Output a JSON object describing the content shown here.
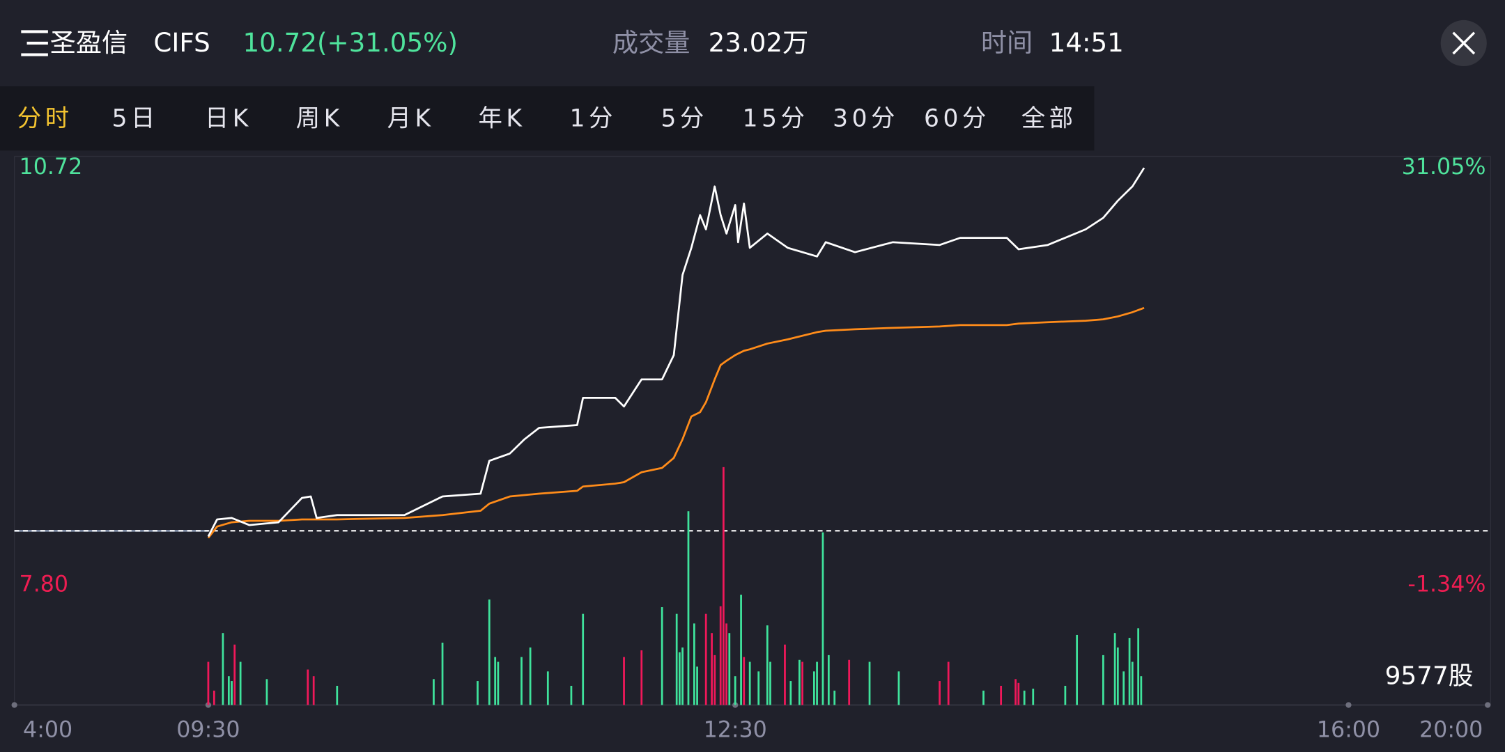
{
  "header": {
    "name": "圣盈信",
    "code": "CIFS",
    "quote": "10.72(+31.05%)",
    "volume_label": "成交量",
    "volume": "23.02万",
    "time_label": "时间",
    "time": "14:51"
  },
  "tabs": {
    "items": [
      "分时",
      "5日",
      "日K",
      "周K",
      "月K",
      "年K",
      "1分",
      "5分",
      "15分",
      "30分",
      "60分",
      "全部"
    ],
    "active": 0
  },
  "chart_data": [
    {
      "type": "line",
      "x": [
        "09:30",
        "09:33",
        "09:38",
        "09:44",
        "09:54",
        "10:02",
        "10:05",
        "10:07",
        "10:14",
        "10:37",
        "10:50",
        "11:03",
        "11:06",
        "11:13",
        "11:18",
        "11:23",
        "11:36",
        "11:38",
        "11:49",
        "11:52",
        "11:58",
        "12:05",
        "12:09",
        "12:12",
        "12:15",
        "12:18",
        "12:20",
        "12:23",
        "12:25",
        "12:27",
        "12:30",
        "12:31",
        "12:33",
        "12:35",
        "12:41",
        "12:48",
        "12:58",
        "13:01",
        "13:11",
        "13:24",
        "13:40",
        "13:47",
        "14:03",
        "14:07",
        "14:17",
        "14:30",
        "14:36",
        "14:41",
        "14:46",
        "14:50"
      ],
      "series": [
        {
          "color": "#ffffff",
          "values": [
            8.14,
            8.26,
            8.27,
            8.22,
            8.24,
            8.41,
            8.42,
            8.27,
            8.29,
            8.29,
            8.42,
            8.44,
            8.67,
            8.72,
            8.82,
            8.9,
            8.92,
            9.11,
            9.11,
            9.05,
            9.24,
            9.24,
            9.41,
            9.97,
            10.16,
            10.39,
            10.29,
            10.59,
            10.39,
            10.26,
            10.46,
            10.2,
            10.47,
            10.16,
            10.26,
            10.16,
            10.1,
            10.2,
            10.13,
            10.2,
            10.18,
            10.23,
            10.23,
            10.15,
            10.18,
            10.29,
            10.37,
            10.49,
            10.59,
            10.72
          ]
        },
        {
          "color": "#ff8c1a",
          "values": [
            8.13,
            8.21,
            8.24,
            8.25,
            8.25,
            8.26,
            8.26,
            8.26,
            8.26,
            8.27,
            8.29,
            8.32,
            8.37,
            8.42,
            8.43,
            8.44,
            8.46,
            8.49,
            8.51,
            8.52,
            8.59,
            8.62,
            8.69,
            8.82,
            8.98,
            9.01,
            9.08,
            9.24,
            9.34,
            9.37,
            9.41,
            9.42,
            9.44,
            9.45,
            9.49,
            9.52,
            9.57,
            9.58,
            9.59,
            9.6,
            9.61,
            9.62,
            9.62,
            9.63,
            9.64,
            9.65,
            9.66,
            9.68,
            9.71,
            9.74
          ]
        }
      ],
      "ylim": [
        7.8,
        10.72
      ],
      "yticks": [
        10.72,
        {
          "value": 7.8,
          "label": "7.80"
        }
      ],
      "y2ticks": [
        {
          "value": 31.05,
          "label": "31.05%"
        },
        {
          "value": -1.34,
          "label": "-1.34%"
        }
      ],
      "ytick_colors": [
        "#4fe39c",
        "#ee1d52"
      ],
      "reference_line": {
        "value": 8.18,
        "color": "#ffffff"
      },
      "xticks": [
        "4:00",
        "09:30",
        "12:30",
        "16:00",
        "20:00"
      ]
    },
    {
      "type": "bar",
      "annotation": "9577股",
      "ylim": [
        0,
        25000
      ],
      "x": [
        "09:30",
        "09:32",
        "09:35",
        "09:37",
        "09:38",
        "09:39",
        "09:41",
        "09:50",
        "10:04",
        "10:06",
        "10:14",
        "10:47",
        "10:50",
        "11:02",
        "11:06",
        "11:08",
        "11:09",
        "11:17",
        "11:20",
        "11:26",
        "11:34",
        "11:38",
        "11:52",
        "11:58",
        "12:05",
        "12:10",
        "12:11",
        "12:12",
        "12:14",
        "12:16",
        "12:17",
        "12:20",
        "12:22",
        "12:23",
        "12:25",
        "12:26",
        "12:27",
        "12:28",
        "12:30",
        "12:32",
        "12:33",
        "12:35",
        "12:38",
        "12:41",
        "12:42",
        "12:47",
        "12:49",
        "12:52",
        "12:53",
        "12:57",
        "12:58",
        "13:00",
        "13:02",
        "13:04",
        "13:09",
        "13:16",
        "13:26",
        "13:40",
        "13:43",
        "13:55",
        "14:01",
        "14:06",
        "14:07",
        "14:09",
        "14:12",
        "14:23",
        "14:27",
        "14:36",
        "14:40",
        "14:41",
        "14:43",
        "14:45",
        "14:46",
        "14:48",
        "14:49"
      ],
      "values": [
        4500,
        1500,
        7500,
        3000,
        2500,
        6300,
        4500,
        2700,
        3700,
        3000,
        2000,
        2700,
        6500,
        2500,
        11000,
        5000,
        4500,
        5000,
        6000,
        3500,
        2000,
        9500,
        5000,
        5700,
        10200,
        9500,
        5500,
        6000,
        20200,
        8500,
        4000,
        9500,
        7500,
        5200,
        10300,
        24800,
        8500,
        7500,
        3000,
        11500,
        5000,
        4500,
        3500,
        8300,
        4500,
        6300,
        2500,
        4700,
        4500,
        3500,
        4500,
        18000,
        5200,
        1500,
        4700,
        4500,
        3500,
        2500,
        4500,
        1500,
        2000,
        2700,
        2300,
        1500,
        1700,
        2000,
        7300,
        5200,
        7500,
        6000,
        3500,
        7000,
        4500,
        8000,
        3000
      ],
      "colors": [
        "#f0185a",
        "#f0185a",
        "#3fe39c",
        "#3fe39c",
        "#3fe39c",
        "#f0185a",
        "#3fe39c",
        "#3fe39c",
        "#f0185a",
        "#f0185a",
        "#3fe39c",
        "#3fe39c",
        "#3fe39c",
        "#3fe39c",
        "#3fe39c",
        "#3fe39c",
        "#3fe39c",
        "#3fe39c",
        "#3fe39c",
        "#3fe39c",
        "#3fe39c",
        "#3fe39c",
        "#f0185a",
        "#f0185a",
        "#3fe39c",
        "#3fe39c",
        "#3fe39c",
        "#3fe39c",
        "#3fe39c",
        "#3fe39c",
        "#3fe39c",
        "#f0185a",
        "#f0185a",
        "#f0185a",
        "#f0185a",
        "#f0185a",
        "#f0185a",
        "#3fe39c",
        "#3fe39c",
        "#3fe39c",
        "#f0185a",
        "#3fe39c",
        "#3fe39c",
        "#3fe39c",
        "#3fe39c",
        "#f0185a",
        "#3fe39c",
        "#3fe39c",
        "#f0185a",
        "#3fe39c",
        "#3fe39c",
        "#3fe39c",
        "#3fe39c",
        "#3fe39c",
        "#f0185a",
        "#3fe39c",
        "#3fe39c",
        "#f0185a",
        "#f0185a",
        "#3fe39c",
        "#f0185a",
        "#f0185a",
        "#f0185a",
        "#3fe39c",
        "#3fe39c",
        "#3fe39c",
        "#3fe39c",
        "#3fe39c",
        "#3fe39c",
        "#3fe39c",
        "#3fe39c",
        "#3fe39c",
        "#3fe39c",
        "#3fe39c",
        "#3fe39c"
      ]
    }
  ]
}
